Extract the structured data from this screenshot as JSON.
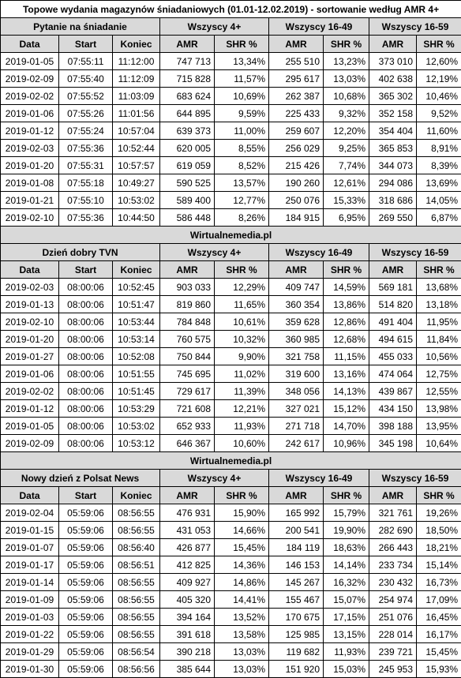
{
  "title": "Topowe wydania magazynów śniadaniowych (01.01-12.02.2019) - sortowanie według AMR 4+",
  "source": "Wirtualnemedia.pl",
  "groups": [
    "Wszyscy 4+",
    "Wszyscy 16-49",
    "Wszyscy 16-59"
  ],
  "columns": [
    "Data",
    "Start",
    "Koniec",
    "AMR",
    "SHR %",
    "AMR",
    "SHR %",
    "AMR",
    "SHR %"
  ],
  "sections": [
    {
      "name": "Pytanie na śniadanie",
      "rows": [
        [
          "2019-01-05",
          "07:55:11",
          "11:12:00",
          "747 713",
          "13,34%",
          "255 510",
          "13,23%",
          "373 010",
          "12,60%"
        ],
        [
          "2019-02-09",
          "07:55:40",
          "11:12:09",
          "715 828",
          "11,57%",
          "295 617",
          "13,03%",
          "402 638",
          "12,19%"
        ],
        [
          "2019-02-02",
          "07:55:52",
          "11:03:09",
          "683 624",
          "10,69%",
          "262 387",
          "10,68%",
          "365 302",
          "10,46%"
        ],
        [
          "2019-01-06",
          "07:55:26",
          "11:01:56",
          "644 895",
          "9,59%",
          "225 433",
          "9,32%",
          "352 158",
          "9,52%"
        ],
        [
          "2019-01-12",
          "07:55:24",
          "10:57:04",
          "639 373",
          "11,00%",
          "259 607",
          "12,20%",
          "354 404",
          "11,60%"
        ],
        [
          "2019-02-03",
          "07:55:36",
          "10:52:44",
          "620 005",
          "8,55%",
          "256 029",
          "9,25%",
          "365 853",
          "8,91%"
        ],
        [
          "2019-01-20",
          "07:55:31",
          "10:57:57",
          "619 059",
          "8,52%",
          "215 426",
          "7,74%",
          "344 073",
          "8,39%"
        ],
        [
          "2019-01-08",
          "07:55:18",
          "10:49:27",
          "590 525",
          "13,57%",
          "190 260",
          "12,61%",
          "294 086",
          "13,69%"
        ],
        [
          "2019-01-21",
          "07:55:10",
          "10:53:02",
          "589 400",
          "12,77%",
          "250 076",
          "15,33%",
          "318 686",
          "14,05%"
        ],
        [
          "2019-02-10",
          "07:55:36",
          "10:44:50",
          "586 448",
          "8,26%",
          "184 915",
          "6,95%",
          "269 550",
          "6,87%"
        ]
      ]
    },
    {
      "name": "Dzień dobry TVN",
      "rows": [
        [
          "2019-02-03",
          "08:00:06",
          "10:52:45",
          "903 033",
          "12,29%",
          "409 747",
          "14,59%",
          "569 181",
          "13,68%"
        ],
        [
          "2019-01-13",
          "08:00:06",
          "10:51:47",
          "819 860",
          "11,65%",
          "360 354",
          "13,86%",
          "514 820",
          "13,18%"
        ],
        [
          "2019-02-10",
          "08:00:06",
          "10:53:44",
          "784 848",
          "10,61%",
          "359 628",
          "12,86%",
          "491 404",
          "11,95%"
        ],
        [
          "2019-01-20",
          "08:00:06",
          "10:53:14",
          "760 575",
          "10,32%",
          "360 985",
          "12,68%",
          "494 615",
          "11,84%"
        ],
        [
          "2019-01-27",
          "08:00:06",
          "10:52:08",
          "750 844",
          "9,90%",
          "321 758",
          "11,15%",
          "455 033",
          "10,56%"
        ],
        [
          "2019-01-06",
          "08:00:06",
          "10:51:55",
          "745 695",
          "11,02%",
          "319 600",
          "13,16%",
          "474 064",
          "12,75%"
        ],
        [
          "2019-02-02",
          "08:00:06",
          "10:51:45",
          "729 617",
          "11,39%",
          "348 056",
          "14,13%",
          "439 867",
          "12,55%"
        ],
        [
          "2019-01-12",
          "08:00:06",
          "10:53:29",
          "721 608",
          "12,21%",
          "327 021",
          "15,12%",
          "434 150",
          "13,98%"
        ],
        [
          "2019-01-05",
          "08:00:06",
          "10:53:02",
          "652 933",
          "11,93%",
          "271 718",
          "14,70%",
          "398 188",
          "13,95%"
        ],
        [
          "2019-02-09",
          "08:00:06",
          "10:53:12",
          "646 367",
          "10,60%",
          "242 617",
          "10,96%",
          "345 198",
          "10,64%"
        ]
      ]
    },
    {
      "name": "Nowy dzień z Polsat News",
      "rows": [
        [
          "2019-02-04",
          "05:59:06",
          "08:56:55",
          "476 931",
          "15,90%",
          "165 992",
          "15,79%",
          "321 761",
          "19,26%"
        ],
        [
          "2019-01-15",
          "05:59:06",
          "08:56:55",
          "431 053",
          "14,66%",
          "200 541",
          "19,90%",
          "282 690",
          "18,50%"
        ],
        [
          "2019-01-07",
          "05:59:06",
          "08:56:40",
          "426 877",
          "15,45%",
          "184 119",
          "18,63%",
          "266 443",
          "18,21%"
        ],
        [
          "2019-01-17",
          "05:59:06",
          "08:56:51",
          "412 825",
          "14,36%",
          "146 153",
          "14,14%",
          "233 734",
          "15,14%"
        ],
        [
          "2019-01-14",
          "05:59:06",
          "08:56:55",
          "409 927",
          "14,86%",
          "145 267",
          "16,32%",
          "230 432",
          "16,73%"
        ],
        [
          "2019-01-09",
          "05:59:06",
          "08:56:55",
          "405 320",
          "14,41%",
          "155 467",
          "15,07%",
          "254 974",
          "17,09%"
        ],
        [
          "2019-01-03",
          "05:59:06",
          "08:56:55",
          "394 164",
          "13,52%",
          "170 675",
          "17,15%",
          "251 076",
          "16,45%"
        ],
        [
          "2019-01-22",
          "05:59:06",
          "08:56:55",
          "391 618",
          "13,58%",
          "125 985",
          "13,15%",
          "228 014",
          "16,17%"
        ],
        [
          "2019-01-29",
          "05:59:06",
          "08:56:54",
          "390 218",
          "13,03%",
          "119 682",
          "11,93%",
          "239 721",
          "15,45%"
        ],
        [
          "2019-01-30",
          "05:59:06",
          "08:56:56",
          "385 644",
          "13,03%",
          "151 920",
          "15,03%",
          "245 953",
          "15,93%"
        ]
      ]
    }
  ]
}
